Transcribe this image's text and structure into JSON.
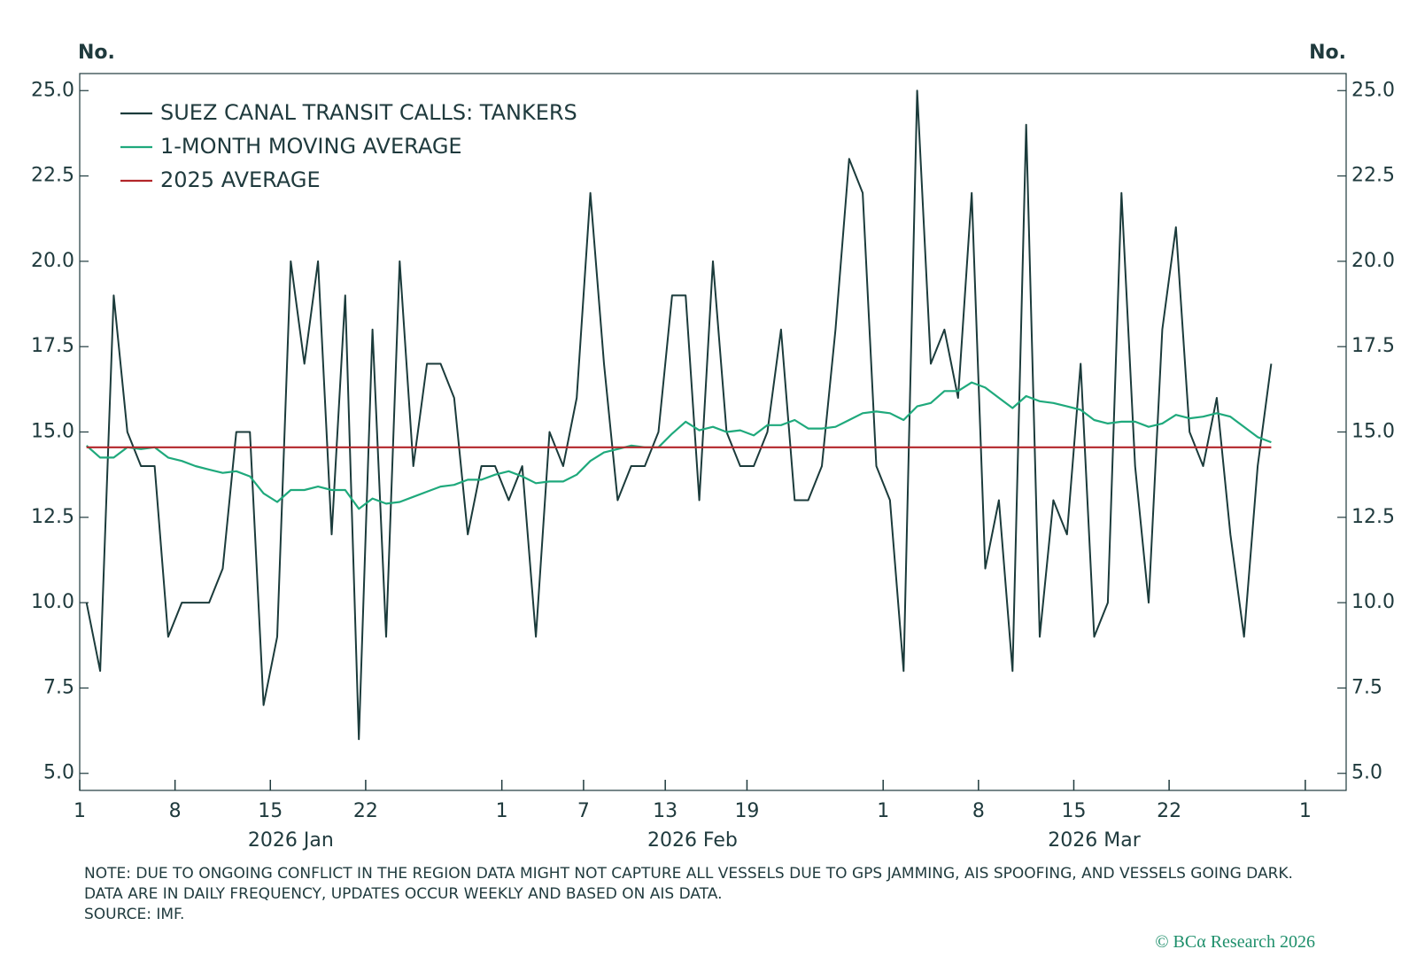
{
  "chart_data": {
    "type": "line",
    "y_label": "No.",
    "x": [
      "2026-01-01",
      "2026-01-02",
      "2026-01-03",
      "2026-01-04",
      "2026-01-05",
      "2026-01-06",
      "2026-01-07",
      "2026-01-08",
      "2026-01-09",
      "2026-01-10",
      "2026-01-11",
      "2026-01-12",
      "2026-01-13",
      "2026-01-14",
      "2026-01-15",
      "2026-01-16",
      "2026-01-17",
      "2026-01-18",
      "2026-01-19",
      "2026-01-20",
      "2026-01-21",
      "2026-01-22",
      "2026-01-23",
      "2026-01-24",
      "2026-01-25",
      "2026-01-26",
      "2026-01-27",
      "2026-01-28",
      "2026-01-29",
      "2026-01-30",
      "2026-01-31",
      "2026-02-01",
      "2026-02-02",
      "2026-02-03",
      "2026-02-04",
      "2026-02-05",
      "2026-02-06",
      "2026-02-07",
      "2026-02-08",
      "2026-02-09",
      "2026-02-10",
      "2026-02-11",
      "2026-02-12",
      "2026-02-13",
      "2026-02-14",
      "2026-02-15",
      "2026-02-16",
      "2026-02-17",
      "2026-02-18",
      "2026-02-19",
      "2026-02-20",
      "2026-02-21",
      "2026-02-22",
      "2026-02-23",
      "2026-02-24",
      "2026-02-25",
      "2026-02-26",
      "2026-02-27",
      "2026-02-28",
      "2026-03-01",
      "2026-03-02",
      "2026-03-03",
      "2026-03-04",
      "2026-03-05",
      "2026-03-06",
      "2026-03-07",
      "2026-03-08",
      "2026-03-09",
      "2026-03-10",
      "2026-03-11",
      "2026-03-12",
      "2026-03-13",
      "2026-03-14",
      "2026-03-15",
      "2026-03-16",
      "2026-03-17",
      "2026-03-18",
      "2026-03-19",
      "2026-03-20",
      "2026-03-21",
      "2026-03-22",
      "2026-03-23",
      "2026-03-24",
      "2026-03-25",
      "2026-03-26",
      "2026-03-27",
      "2026-03-28",
      "2026-03-29"
    ],
    "series": [
      {
        "name": "SUEZ CANAL TRANSIT CALLS: TANKERS",
        "color": "#1b3b3b",
        "values": [
          10,
          8,
          19,
          15,
          14,
          14,
          9,
          10,
          10,
          10,
          11,
          15,
          15,
          7,
          9,
          20,
          17,
          20,
          12,
          19,
          6,
          18,
          9,
          20,
          14,
          17,
          17,
          16,
          12,
          14,
          14,
          13,
          14,
          9,
          15,
          14,
          16,
          22,
          17,
          13,
          14,
          14,
          15,
          19,
          19,
          13,
          20,
          15,
          14,
          14,
          15,
          18,
          13,
          13,
          14,
          18,
          23,
          22,
          14,
          13,
          8,
          25,
          17,
          18,
          16,
          22,
          11,
          13,
          8,
          24,
          9,
          13,
          12,
          17,
          9,
          10,
          22,
          14,
          10,
          18,
          21,
          15,
          14,
          16,
          12,
          9,
          14,
          17
        ]
      },
      {
        "name": "1-MONTH MOVING AVERAGE",
        "color": "#1fa97c",
        "values": [
          14.6,
          14.25,
          14.25,
          14.55,
          14.5,
          14.55,
          14.25,
          14.15,
          14.0,
          13.9,
          13.8,
          13.85,
          13.7,
          13.2,
          12.95,
          13.3,
          13.3,
          13.4,
          13.3,
          13.3,
          12.75,
          13.05,
          12.9,
          12.95,
          13.1,
          13.25,
          13.4,
          13.45,
          13.6,
          13.6,
          13.75,
          13.85,
          13.7,
          13.5,
          13.55,
          13.55,
          13.75,
          14.15,
          14.4,
          14.5,
          14.6,
          14.55,
          14.55,
          14.95,
          15.3,
          15.05,
          15.15,
          15.0,
          15.05,
          14.9,
          15.2,
          15.2,
          15.35,
          15.1,
          15.1,
          15.15,
          15.35,
          15.55,
          15.6,
          15.55,
          15.35,
          15.75,
          15.85,
          16.2,
          16.2,
          16.45,
          16.3,
          16.0,
          15.7,
          16.05,
          15.9,
          15.85,
          15.75,
          15.65,
          15.35,
          15.25,
          15.3,
          15.3,
          15.15,
          15.25,
          15.5,
          15.4,
          15.45,
          15.55,
          15.45,
          15.15,
          14.85,
          14.7
        ]
      },
      {
        "name": "2025 AVERAGE",
        "color": "#b3262a",
        "value": 14.55
      }
    ],
    "ylim": [
      4.5,
      25.5
    ],
    "yticks": [
      {
        "value": 5,
        "label": "5.0"
      },
      {
        "value": 7.5,
        "label": "7.5"
      },
      {
        "value": 10,
        "label": "10.0"
      },
      {
        "value": 12.5,
        "label": "12.5"
      },
      {
        "value": 15,
        "label": "15.0"
      },
      {
        "value": 17.5,
        "label": "17.5"
      },
      {
        "value": 20,
        "label": "20.0"
      },
      {
        "value": 22.5,
        "label": "22.5"
      },
      {
        "value": 25,
        "label": "25.0"
      }
    ],
    "xlim": [
      "2026-01-01",
      "2026-04-04"
    ],
    "xticks": [
      {
        "value": "2026-01-01",
        "label": "1"
      },
      {
        "value": "2026-01-08",
        "label": "8"
      },
      {
        "value": "2026-01-15",
        "label": "15"
      },
      {
        "value": "2026-01-22",
        "label": "22"
      },
      {
        "value": "2026-02-01",
        "label": "1"
      },
      {
        "value": "2026-02-07",
        "label": "7"
      },
      {
        "value": "2026-02-13",
        "label": "13"
      },
      {
        "value": "2026-02-19",
        "label": "19"
      },
      {
        "value": "2026-03-01",
        "label": "1"
      },
      {
        "value": "2026-03-08",
        "label": "8"
      },
      {
        "value": "2026-03-15",
        "label": "15"
      },
      {
        "value": "2026-03-22",
        "label": "22"
      },
      {
        "value": "2026-04-01",
        "label": "1"
      }
    ],
    "months": [
      "2026 Jan",
      "2026 Feb",
      "2026 Mar"
    ],
    "note": "NOTE: DUE TO ONGOING CONFLICT IN THE REGION DATA MIGHT NOT CAPTURE ALL VESSELS DUE TO GPS JAMMING, AIS SPOOFING, AND VESSELS GOING DARK. DATA ARE IN DAILY FREQUENCY, UPDATES OCCUR WEEKLY AND BASED ON AIS DATA.",
    "source": "SOURCE: IMF.",
    "credit": "© BCα Research 2026"
  }
}
